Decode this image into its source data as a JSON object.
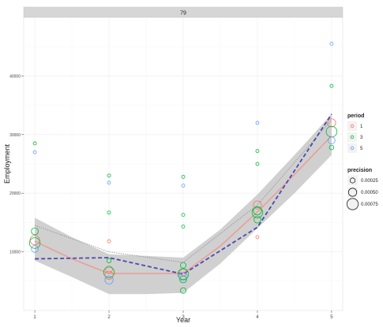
{
  "chart_data": {
    "type": "scatter",
    "facet_label": "79",
    "xlabel": "Year",
    "ylabel": "Employment",
    "xlim": [
      0.85,
      5.15
    ],
    "ylim": [
      0,
      50000
    ],
    "x_ticks": [
      1,
      2,
      3,
      4,
      5
    ],
    "x_tick_labels": [
      "1",
      "2",
      "3",
      "4",
      "5"
    ],
    "y_ticks": [
      10000,
      20000,
      30000,
      40000
    ],
    "y_tick_labels": [
      "10000",
      "20000",
      "30000",
      "40000"
    ],
    "grid": true,
    "legend_placement": "right",
    "legends": {
      "period": {
        "title": "period",
        "entries": [
          {
            "label": "1",
            "color": "#f8766d"
          },
          {
            "label": "3",
            "color": "#00ba38"
          },
          {
            "label": "5",
            "color": "#619cff"
          }
        ]
      },
      "precision": {
        "title": "precision",
        "entries": [
          {
            "label": "0.00025",
            "size": 0.00025
          },
          {
            "label": "0.00050",
            "size": 0.0005
          },
          {
            "label": "0.00075",
            "size": 0.00075
          }
        ]
      }
    },
    "points": [
      {
        "x": 1,
        "y": 28500,
        "period": "3",
        "precision": 0.0001
      },
      {
        "x": 1,
        "y": 27000,
        "period": "5",
        "precision": 0.0001
      },
      {
        "x": 1,
        "y": 13500,
        "period": "3",
        "precision": 0.0004
      },
      {
        "x": 1,
        "y": 12000,
        "period": "1",
        "precision": 0.0006
      },
      {
        "x": 1,
        "y": 11500,
        "period": "3",
        "precision": 0.0007
      },
      {
        "x": 1,
        "y": 10500,
        "period": "5",
        "precision": 0.0004
      },
      {
        "x": 2,
        "y": 23000,
        "period": "3",
        "precision": 0.0001
      },
      {
        "x": 2,
        "y": 21800,
        "period": "5",
        "precision": 0.0001
      },
      {
        "x": 2,
        "y": 16700,
        "period": "3",
        "precision": 0.0001
      },
      {
        "x": 2,
        "y": 11800,
        "period": "1",
        "precision": 0.0001
      },
      {
        "x": 2,
        "y": 8500,
        "period": "3",
        "precision": 0.0002
      },
      {
        "x": 2,
        "y": 7000,
        "period": "1",
        "precision": 0.0004
      },
      {
        "x": 2,
        "y": 6500,
        "period": "3",
        "precision": 0.0007
      },
      {
        "x": 2,
        "y": 6000,
        "period": "1",
        "precision": 0.0005
      },
      {
        "x": 2,
        "y": 5200,
        "period": "5",
        "precision": 0.0005
      },
      {
        "x": 3,
        "y": 22800,
        "period": "3",
        "precision": 0.0001
      },
      {
        "x": 3,
        "y": 21300,
        "period": "5",
        "precision": 0.0001
      },
      {
        "x": 3,
        "y": 16300,
        "period": "3",
        "precision": 0.0001
      },
      {
        "x": 3,
        "y": 14300,
        "period": "3",
        "precision": 0.0001
      },
      {
        "x": 3,
        "y": 7700,
        "period": "3",
        "precision": 0.0003
      },
      {
        "x": 3,
        "y": 6500,
        "period": "1",
        "precision": 0.0004
      },
      {
        "x": 3,
        "y": 6200,
        "period": "3",
        "precision": 0.0007
      },
      {
        "x": 3,
        "y": 5800,
        "period": "5",
        "precision": 0.0005
      },
      {
        "x": 3,
        "y": 5300,
        "period": "3",
        "precision": 0.0004
      },
      {
        "x": 3,
        "y": 3400,
        "period": "3",
        "precision": 0.0003
      },
      {
        "x": 4,
        "y": 32000,
        "period": "5",
        "precision": 0.0001
      },
      {
        "x": 4,
        "y": 27200,
        "period": "3",
        "precision": 0.0001
      },
      {
        "x": 4,
        "y": 25000,
        "period": "3",
        "precision": 0.0001
      },
      {
        "x": 4,
        "y": 18000,
        "period": "1",
        "precision": 0.0005
      },
      {
        "x": 4,
        "y": 17000,
        "period": "3",
        "precision": 0.0005
      },
      {
        "x": 4,
        "y": 16700,
        "period": "3",
        "precision": 0.0007
      },
      {
        "x": 4,
        "y": 15500,
        "period": "3",
        "precision": 0.0004
      },
      {
        "x": 4,
        "y": 12500,
        "period": "1",
        "precision": 0.0001
      },
      {
        "x": 5,
        "y": 45500,
        "period": "5",
        "precision": 0.0001
      },
      {
        "x": 5,
        "y": 38300,
        "period": "3",
        "precision": 0.0001
      },
      {
        "x": 5,
        "y": 32000,
        "period": "1",
        "precision": 0.0005
      },
      {
        "x": 5,
        "y": 30500,
        "period": "3",
        "precision": 0.0007
      },
      {
        "x": 5,
        "y": 29000,
        "period": "5",
        "precision": 0.0004
      },
      {
        "x": 5,
        "y": 27800,
        "period": "3",
        "precision": 0.0002
      }
    ],
    "smooth": {
      "color": "#e8a09a",
      "x": [
        1,
        1.5,
        2,
        2.5,
        3,
        3.5,
        4,
        4.5,
        5
      ],
      "y": [
        11800,
        8800,
        6300,
        6300,
        6300,
        11000,
        16800,
        23200,
        29800
      ],
      "lower": [
        8500,
        5700,
        2800,
        2800,
        3000,
        8000,
        14000,
        20000,
        26500
      ],
      "upper": [
        15800,
        12500,
        9600,
        9300,
        9000,
        13800,
        19800,
        26500,
        33500
      ],
      "band_color": "#c8c8c8"
    },
    "dashed_line": {
      "color": "#4a4ab0",
      "x": [
        1,
        2,
        3,
        4,
        5
      ],
      "y": [
        8800,
        9000,
        6200,
        14200,
        33500
      ]
    },
    "dotted_line": {
      "color": "#888888",
      "x": [
        1,
        2,
        3,
        4,
        5
      ],
      "y": [
        14500,
        10000,
        8200,
        18000,
        32500
      ]
    }
  }
}
